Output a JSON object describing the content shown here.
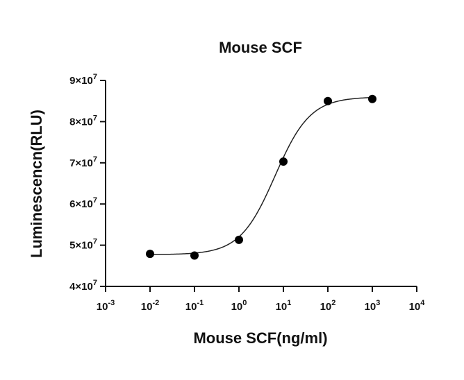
{
  "chart_data": {
    "type": "scatter",
    "title": "Mouse SCF",
    "xlabel": "Mouse SCF(ng/ml)",
    "ylabel": "Luminescencn(RLU)",
    "x_scale": "log",
    "xlim": [
      0.001,
      10000
    ],
    "ylim": [
      40000000,
      90000000
    ],
    "x_ticks": [
      {
        "base": "10",
        "exp": "-3"
      },
      {
        "base": "10",
        "exp": "-2"
      },
      {
        "base": "10",
        "exp": "-1"
      },
      {
        "base": "10",
        "exp": "0"
      },
      {
        "base": "10",
        "exp": "1"
      },
      {
        "base": "10",
        "exp": "2"
      },
      {
        "base": "10",
        "exp": "3"
      },
      {
        "base": "10",
        "exp": "4"
      }
    ],
    "y_ticks": [
      {
        "mant": "4×10",
        "exp": "7"
      },
      {
        "mant": "5×10",
        "exp": "7"
      },
      {
        "mant": "6×10",
        "exp": "7"
      },
      {
        "mant": "7×10",
        "exp": "7"
      },
      {
        "mant": "8×10",
        "exp": "7"
      },
      {
        "mant": "9×10",
        "exp": "7"
      }
    ],
    "series": [
      {
        "x": [
          0.01,
          0.1,
          1,
          10,
          100,
          1000
        ],
        "y": [
          47900000,
          47500000,
          51300000,
          70300000,
          85000000,
          85500000
        ]
      }
    ],
    "fit": {
      "model": "4PL",
      "bottom": 47700000,
      "top": 86000000,
      "ec50": 6.5,
      "hill": 1.1
    },
    "grid": false
  }
}
